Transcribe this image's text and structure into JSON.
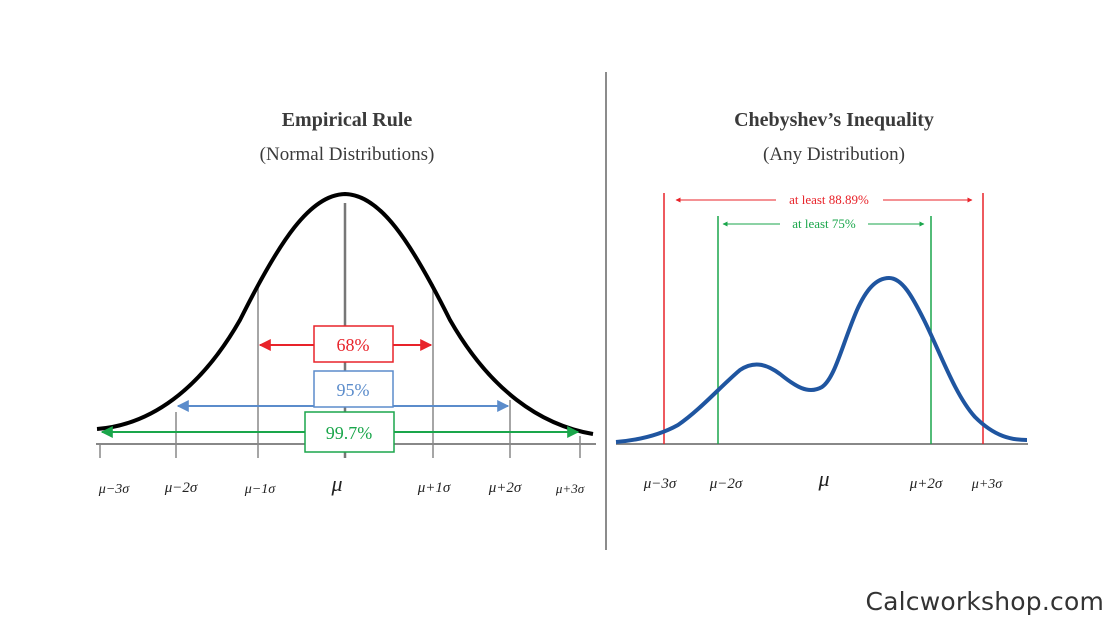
{
  "left_panel": {
    "title": "Empirical Rule",
    "subtitle": "(Normal Distributions)",
    "bands": [
      {
        "label": "68%",
        "color": "#e8232a"
      },
      {
        "label": "95%",
        "color": "#5b8ccb"
      },
      {
        "label": "99.7%",
        "color": "#1aa64b"
      }
    ],
    "tick_labels": [
      "μ−3σ",
      "μ−2σ",
      "μ−1σ",
      "μ",
      "μ+1σ",
      "μ+2σ",
      "μ+3σ"
    ]
  },
  "right_panel": {
    "title": "Chebyshev’s Inequality",
    "subtitle": "(Any Distribution)",
    "bands": [
      {
        "label": "at least 88.89%",
        "color": "#e8232a"
      },
      {
        "label": "at least 75%",
        "color": "#1aa64b"
      }
    ],
    "tick_labels": [
      "μ−3σ",
      "μ−2σ",
      "μ",
      "μ+2σ",
      "μ+3σ"
    ],
    "curve_color": "#1f55a0"
  },
  "credit": "Calcworkshop.com"
}
